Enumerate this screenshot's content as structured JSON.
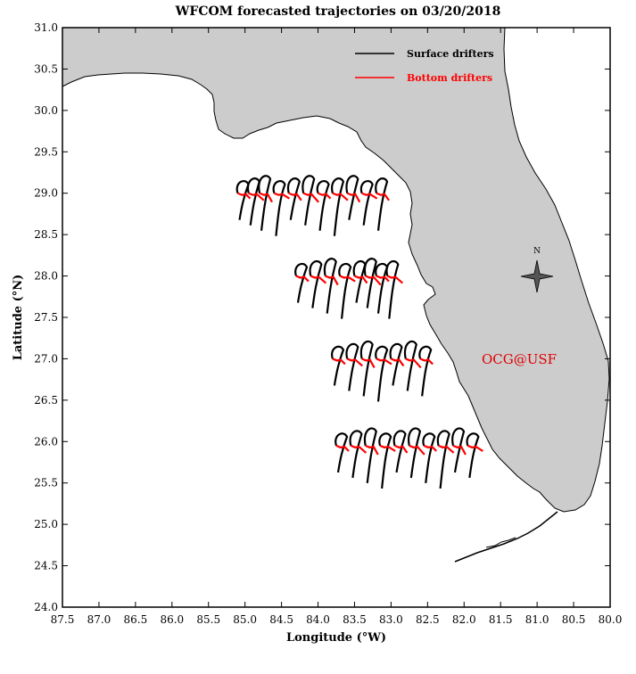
{
  "title": "WFCOM forecasted trajectories on 03/20/2018",
  "xlabel": "Longitude (°W)",
  "ylabel": "Latitude (°N)",
  "x_ticks": [
    "87.5",
    "87.0",
    "86.5",
    "86.0",
    "85.5",
    "85.0",
    "84.5",
    "84.0",
    "83.5",
    "83.0",
    "82.5",
    "82.0",
    "81.5",
    "81.0",
    "80.5",
    "80.0"
  ],
  "y_ticks": [
    "24.0",
    "24.5",
    "25.0",
    "25.5",
    "26.0",
    "26.5",
    "27.0",
    "27.5",
    "28.0",
    "28.5",
    "29.0",
    "29.5",
    "30.0",
    "30.5",
    "31.0"
  ],
  "legend": {
    "surface_label": "Surface drifters",
    "bottom_label": "Bottom drifters"
  },
  "watermark": "OCG@USF",
  "compass_label": "N",
  "colors": {
    "land": "#cccccc",
    "coastline": "#000000",
    "surface": "#000000",
    "bottom": "#ff0000",
    "watermark": "#e00000"
  },
  "map_extent": {
    "lon_west": 87.5,
    "lon_east": 80.0,
    "lat_south": 24.0,
    "lat_north": 31.0
  },
  "trajectory_groups": [
    {
      "release_lat": 29.0,
      "surface_start_lons": [
        85.1,
        84.95,
        84.8,
        84.6,
        84.4,
        84.2,
        84.0,
        83.8,
        83.6,
        83.4,
        83.2
      ]
    },
    {
      "release_lat": 28.0,
      "surface_start_lons": [
        84.3,
        84.1,
        83.9,
        83.7,
        83.5,
        83.35,
        83.2,
        83.05
      ]
    },
    {
      "release_lat": 27.0,
      "surface_start_lons": [
        83.8,
        83.6,
        83.4,
        83.2,
        83.0,
        82.8,
        82.6
      ]
    },
    {
      "release_lat": 25.95,
      "surface_start_lons": [
        83.75,
        83.55,
        83.35,
        83.15,
        82.95,
        82.75,
        82.55,
        82.35,
        82.15,
        81.95
      ]
    }
  ]
}
